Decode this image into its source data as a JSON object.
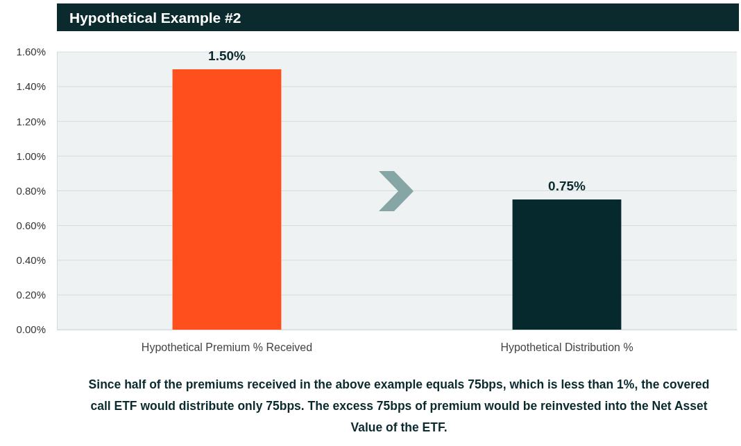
{
  "chart_data": {
    "type": "bar",
    "title": "Hypothetical Example #2",
    "categories": [
      "Hypothetical Premium % Received",
      "Hypothetical Distribution %"
    ],
    "values": [
      1.5,
      0.75
    ],
    "colors": [
      "#ff4f1c",
      "#06292e"
    ],
    "data_labels": true,
    "value_labels": [
      "1.50%",
      "0.75%"
    ],
    "ylim": [
      0,
      1.6
    ],
    "yticks": [
      {
        "value": 0,
        "label": "0.00%"
      },
      {
        "value": 0.2,
        "label": "0.20%"
      },
      {
        "value": 0.4,
        "label": "0.40%"
      },
      {
        "value": 0.6,
        "label": "0.60%"
      },
      {
        "value": 0.8,
        "label": "0.80%"
      },
      {
        "value": 1.0,
        "label": "1.00%"
      },
      {
        "value": 1.2,
        "label": "1.20%"
      },
      {
        "value": 1.4,
        "label": "1.40%"
      },
      {
        "value": 1.6,
        "label": "1.60%"
      }
    ],
    "grid": "y",
    "annotations": [
      "Since half of the premiums received in the above example equals 75bps, which is less than 1%, the covered call ETF would distribute only 75bps. The excess 75bps of premium would be reinvested into the Net Asset Value of the ETF."
    ]
  }
}
